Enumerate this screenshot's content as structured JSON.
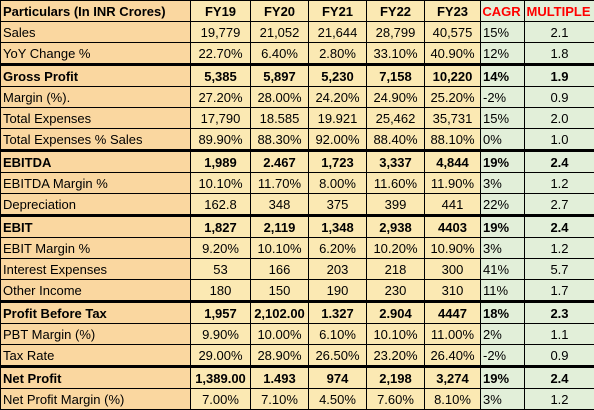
{
  "header": {
    "particulars": "Particulars (In INR Crores)",
    "years": [
      "FY19",
      "FY20",
      "FY21",
      "FY22",
      "FY23"
    ],
    "cagr": "CAGR",
    "multiple": "MULTIPLE"
  },
  "rows": [
    {
      "label": "Sales",
      "values": [
        "19,779",
        "21,052",
        "21,644",
        "28,799",
        "40,575"
      ],
      "cagr": "15%",
      "multiple": "2.1",
      "bold": false,
      "thick_top": false
    },
    {
      "label": "YoY Change %",
      "values": [
        "22.70%",
        "6.40%",
        "2.80%",
        "33.10%",
        "40.90%"
      ],
      "cagr": "12%",
      "multiple": "1.8",
      "bold": false,
      "thick_top": false
    },
    {
      "label": "Gross Profit",
      "values": [
        "5,385",
        "5,897",
        "5,230",
        "7,158",
        "10,220"
      ],
      "cagr": "14%",
      "multiple": "1.9",
      "bold": true,
      "thick_top": true
    },
    {
      "label": "Margin (%).",
      "values": [
        "27.20%",
        "28.00%",
        "24.20%",
        "24.90%",
        "25.20%"
      ],
      "cagr": "-2%",
      "multiple": "0.9",
      "bold": false,
      "thick_top": false
    },
    {
      "label": "Total Expenses",
      "values": [
        "17,790",
        "18.585",
        "19.921",
        "25,462",
        "35,731"
      ],
      "cagr": "15%",
      "multiple": "2.0",
      "bold": false,
      "thick_top": false
    },
    {
      "label": "Total Expenses % Sales",
      "values": [
        "89.90%",
        "88.30%",
        "92.00%",
        "88.40%",
        "88.10%"
      ],
      "cagr": "0%",
      "multiple": "1.0",
      "bold": false,
      "thick_top": false
    },
    {
      "label": "EBITDA",
      "values": [
        "1,989",
        "2.467",
        "1,723",
        "3,337",
        "4,844"
      ],
      "cagr": "19%",
      "multiple": "2.4",
      "bold": true,
      "thick_top": true
    },
    {
      "label": "EBITDA Margin %",
      "values": [
        "10.10%",
        "11.70%",
        "8.00%",
        "11.60%",
        "11.90%"
      ],
      "cagr": "3%",
      "multiple": "1.2",
      "bold": false,
      "thick_top": false
    },
    {
      "label": "Depreciation",
      "values": [
        "162.8",
        "348",
        "375",
        "399",
        "441"
      ],
      "cagr": "22%",
      "multiple": "2.7",
      "bold": false,
      "thick_top": false
    },
    {
      "label": "EBIT",
      "values": [
        "1,827",
        "2,119",
        "1,348",
        "2,938",
        "4403"
      ],
      "cagr": "19%",
      "multiple": "2.4",
      "bold": true,
      "thick_top": true
    },
    {
      "label": "EBIT Margin %",
      "values": [
        "9.20%",
        "10.10%",
        "6.20%",
        "10.20%",
        "10.90%"
      ],
      "cagr": "3%",
      "multiple": "1.2",
      "bold": false,
      "thick_top": false
    },
    {
      "label": "Interest Expenses",
      "values": [
        "53",
        "166",
        "203",
        "218",
        "300"
      ],
      "cagr": "41%",
      "multiple": "5.7",
      "bold": false,
      "thick_top": false
    },
    {
      "label": "Other Income",
      "values": [
        "180",
        "150",
        "190",
        "230",
        "310"
      ],
      "cagr": "11%",
      "multiple": "1.7",
      "bold": false,
      "thick_top": false
    },
    {
      "label": "Profit Before Tax",
      "values": [
        "1,957",
        "2,102.00",
        "1.327",
        "2.904",
        "4447"
      ],
      "cagr": "18%",
      "multiple": "2.3",
      "bold": true,
      "thick_top": true
    },
    {
      "label": "PBT Margin (%)",
      "values": [
        "9.90%",
        "10.00%",
        "6.10%",
        "10.10%",
        "11.00%"
      ],
      "cagr": "2%",
      "multiple": "1.1",
      "bold": false,
      "thick_top": false
    },
    {
      "label": "Tax Rate",
      "values": [
        "29.00%",
        "28.90%",
        "26.50%",
        "23.20%",
        "26.40%"
      ],
      "cagr": "-2%",
      "multiple": "0.9",
      "bold": false,
      "thick_top": false
    },
    {
      "label": "Net Profit",
      "values": [
        "1,389.00",
        "1.493",
        "974",
        "2,198",
        "3,274"
      ],
      "cagr": "19%",
      "multiple": "2.4",
      "bold": true,
      "thick_top": true
    },
    {
      "label": "Net Profit Margin (%)",
      "values": [
        "7.00%",
        "7.10%",
        "4.50%",
        "7.60%",
        "8.10%"
      ],
      "cagr": "3%",
      "multiple": "1.2",
      "bold": false,
      "thick_top": false
    }
  ]
}
